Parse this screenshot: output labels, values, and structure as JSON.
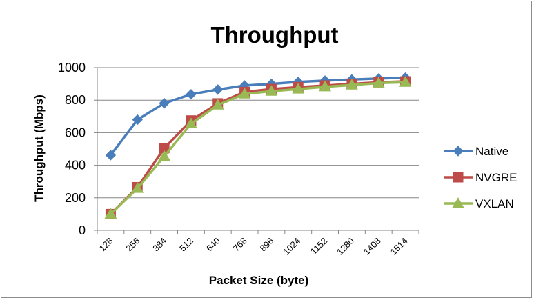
{
  "chart_data": {
    "type": "line",
    "title": "Throughput",
    "xlabel": "Packet Size (byte)",
    "ylabel": "Throughput (Mbps)",
    "ylim": [
      0,
      1000
    ],
    "yticks": [
      0,
      200,
      400,
      600,
      800,
      1000
    ],
    "grid": true,
    "legend": "right",
    "categories": [
      "128",
      "256",
      "384",
      "512",
      "640",
      "768",
      "896",
      "1024",
      "1152",
      "1280",
      "1408",
      "1514"
    ],
    "series": [
      {
        "name": "Native",
        "color": "#4a7ebb",
        "marker": "diamond",
        "values": [
          462,
          680,
          781,
          836,
          865,
          890,
          900,
          912,
          920,
          927,
          933,
          938
        ]
      },
      {
        "name": "NVGRE",
        "color": "#be4b48",
        "marker": "square",
        "values": [
          100,
          265,
          505,
          675,
          780,
          850,
          868,
          880,
          890,
          900,
          910,
          915
        ]
      },
      {
        "name": "VXLAN",
        "color": "#98b954",
        "marker": "triangle",
        "values": [
          100,
          258,
          455,
          655,
          770,
          838,
          855,
          868,
          882,
          893,
          905,
          910
        ]
      }
    ]
  }
}
